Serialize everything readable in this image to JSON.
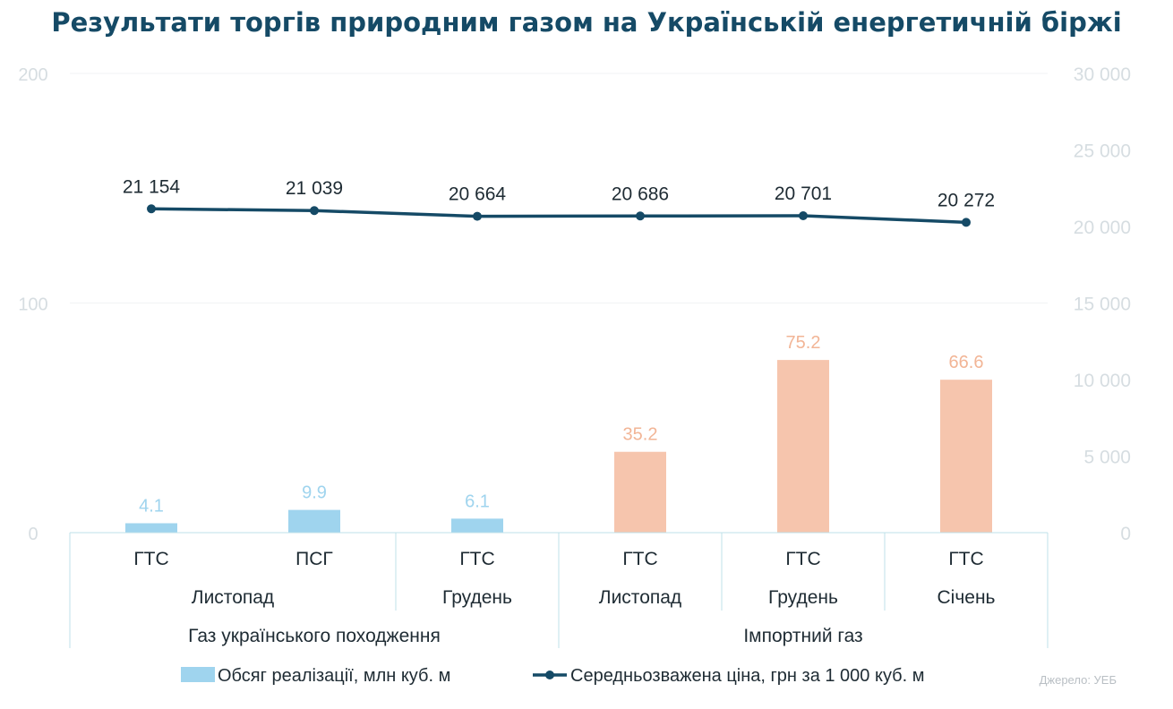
{
  "chart_data": {
    "type": "bar+line",
    "title": "Результати торгів природним газом на Українській енергетичній біржі",
    "categories": [
      {
        "product": "ГТС",
        "month": "Листопад",
        "group": "Газ українського походження"
      },
      {
        "product": "ПСГ",
        "month": "Листопад",
        "group": "Газ українського походження"
      },
      {
        "product": "ГТС",
        "month": "Грудень",
        "group": "Газ українського походження"
      },
      {
        "product": "ГТС",
        "month": "Листопад",
        "group": "Імпортний газ"
      },
      {
        "product": "ГТС",
        "month": "Грудень",
        "group": "Імпортний газ"
      },
      {
        "product": "ГТС",
        "month": "Січень",
        "group": "Імпортний газ"
      }
    ],
    "month_labels": [
      "Листопад",
      "Грудень",
      "Листопад",
      "Грудень",
      "Січень"
    ],
    "group_labels": [
      "Газ українського походження",
      "Імпортний газ"
    ],
    "series": [
      {
        "name": "Обсяг реалізації, млн куб. м",
        "type": "bar",
        "axis": "left",
        "values": [
          4.1,
          9.9,
          6.1,
          35.2,
          75.2,
          66.6
        ],
        "labels": [
          "4.1",
          "9.9",
          "6.1",
          "35.2",
          "75.2",
          "66.6"
        ]
      },
      {
        "name": "Середньозважена ціна, грн за 1 000 куб. м",
        "type": "line",
        "axis": "right",
        "values": [
          21154,
          21039,
          20664,
          20686,
          20701,
          20272
        ],
        "labels": [
          "21 154",
          "21 039",
          "20 664",
          "20 686",
          "20 701",
          "20 272"
        ]
      }
    ],
    "y_left": {
      "range": [
        0,
        200
      ],
      "ticks": [
        "0",
        "100",
        "200"
      ]
    },
    "y_right": {
      "range": [
        0,
        30000
      ],
      "ticks": [
        "0",
        "5 000",
        "10 000",
        "15 000",
        "20 000",
        "25 000",
        "30 000"
      ]
    },
    "grid": true,
    "legend_position": "bottom"
  },
  "colors": {
    "title": "#154a66",
    "line": "#154a66",
    "bar_domestic": "#9fd4ee",
    "bar_import": "#f6c5ad",
    "label_domestic": "#9fd4ee",
    "label_import": "#f2b596",
    "tick": "#d6dde1",
    "grid": "#f1f3f4",
    "table_border": "#bfe0ea"
  },
  "source": "Джерело: УЕБ"
}
